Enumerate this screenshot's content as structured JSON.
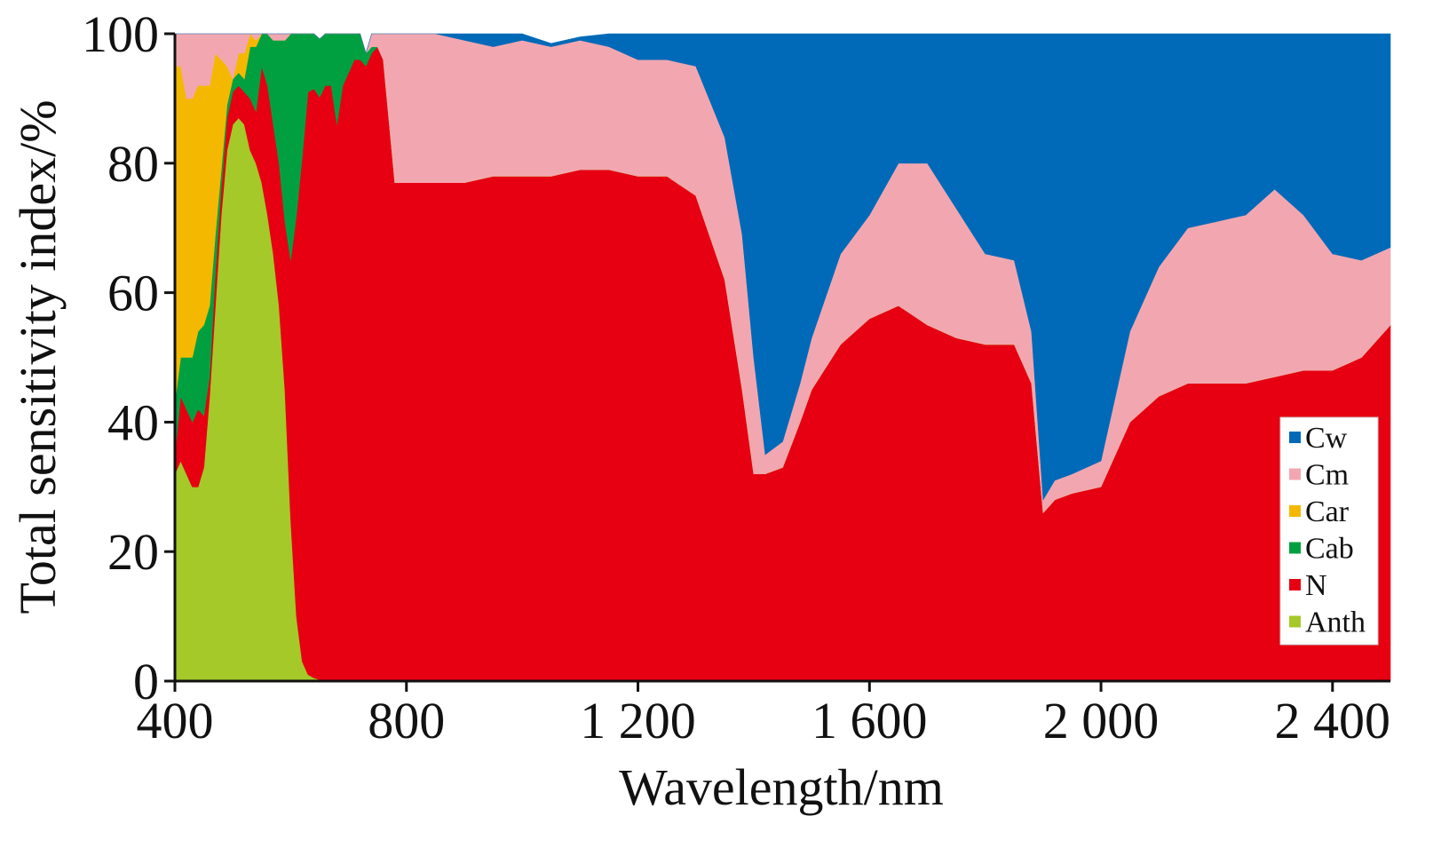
{
  "chart_data": {
    "type": "area",
    "stacked": true,
    "xlabel": "Wavelength/nm",
    "ylabel": "Total sensitivity index/%",
    "xlim": [
      400,
      2500
    ],
    "ylim": [
      0,
      100
    ],
    "x_ticks": [
      400,
      800,
      1200,
      1600,
      2000,
      2400
    ],
    "x_tick_labels": [
      "400",
      "800",
      "1 200",
      "1 600",
      "2 000",
      "2 400"
    ],
    "y_ticks": [
      0,
      20,
      40,
      60,
      80,
      100
    ],
    "y_tick_labels": [
      "0",
      "20",
      "40",
      "60",
      "80",
      "100"
    ],
    "grid": false,
    "legend_position": "bottom-right",
    "legend": [
      "Cw",
      "Cm",
      "Car",
      "Cab",
      "N",
      "Anth"
    ],
    "x": [
      400,
      410,
      420,
      430,
      440,
      450,
      460,
      470,
      480,
      490,
      500,
      510,
      520,
      530,
      540,
      550,
      560,
      570,
      580,
      590,
      600,
      610,
      620,
      630,
      640,
      650,
      660,
      670,
      680,
      690,
      700,
      710,
      720,
      730,
      740,
      750,
      760,
      780,
      800,
      850,
      900,
      950,
      1000,
      1050,
      1100,
      1150,
      1200,
      1250,
      1300,
      1350,
      1380,
      1400,
      1420,
      1450,
      1480,
      1500,
      1550,
      1600,
      1650,
      1700,
      1750,
      1800,
      1850,
      1880,
      1900,
      1920,
      1950,
      2000,
      2050,
      2100,
      2150,
      2200,
      2250,
      2300,
      2350,
      2400,
      2450,
      2500
    ],
    "series": [
      {
        "name": "Anth",
        "color": "#a4c929",
        "values": [
          32,
          34,
          32,
          30,
          30,
          33,
          44,
          58,
          72,
          82,
          86,
          87,
          86,
          82,
          80,
          77,
          72,
          66,
          58,
          45,
          25,
          10,
          3,
          1,
          0.5,
          0.2,
          0,
          0,
          0,
          0,
          0,
          0,
          0,
          0,
          0,
          0,
          0,
          0,
          0,
          0,
          0,
          0,
          0,
          0,
          0,
          0,
          0,
          0,
          0,
          0,
          0,
          0,
          0,
          0,
          0,
          0,
          0,
          0,
          0,
          0,
          0,
          0,
          0,
          0,
          0,
          0,
          0,
          0,
          0,
          0,
          0,
          0,
          0,
          0,
          0,
          0,
          0,
          0
        ]
      },
      {
        "name": "N",
        "color": "#e60012",
        "values": [
          3,
          10,
          10,
          10,
          12,
          8,
          3,
          5,
          4,
          5,
          5,
          5,
          5,
          8,
          8,
          18,
          20,
          20,
          22,
          26,
          40,
          62,
          78,
          90,
          91,
          90,
          92,
          92,
          86,
          92,
          94,
          96,
          96,
          95,
          97,
          98,
          96,
          77,
          77,
          77,
          77,
          78,
          78,
          78,
          79,
          79,
          78,
          78,
          75,
          62,
          45,
          32,
          32,
          33,
          40,
          45,
          52,
          56,
          58,
          55,
          53,
          52,
          52,
          46,
          26,
          28,
          29,
          30,
          40,
          44,
          46,
          46,
          46,
          47,
          48,
          48,
          50,
          55
        ]
      },
      {
        "name": "Cab",
        "color": "#00a040",
        "values": [
          8,
          6,
          8,
          10,
          12,
          14,
          11,
          6,
          3,
          2,
          2,
          2,
          2,
          8,
          10,
          5,
          8,
          13,
          19,
          28,
          35,
          28,
          20,
          10,
          8.5,
          9,
          8,
          8,
          14,
          8,
          6,
          4,
          4,
          2,
          1,
          0,
          0,
          0,
          0,
          0,
          0,
          0,
          0,
          0,
          0,
          0,
          0,
          0,
          0,
          0,
          0,
          0,
          0,
          0,
          0,
          0,
          0,
          0,
          0,
          0,
          0,
          0,
          0,
          0,
          0,
          0,
          0,
          0,
          0,
          0,
          0,
          0,
          0,
          0,
          0,
          0,
          0,
          0
        ]
      },
      {
        "name": "Car",
        "color": "#f5b800",
        "values": [
          52,
          45,
          40,
          40,
          38,
          37,
          34,
          28,
          17,
          6,
          0,
          3,
          4,
          2,
          1,
          0,
          0,
          0,
          0,
          0,
          0,
          0,
          0,
          0,
          0,
          0,
          0,
          0,
          0,
          0,
          0,
          0,
          0,
          0,
          0,
          0,
          0,
          0,
          0,
          0,
          0,
          0,
          0,
          0,
          0,
          0,
          0,
          0,
          0,
          0,
          0,
          0,
          0,
          0,
          0,
          0,
          0,
          0,
          0,
          0,
          0,
          0,
          0,
          0,
          0,
          0,
          0,
          0,
          0,
          0,
          0,
          0,
          0,
          0,
          0,
          0,
          0,
          0
        ]
      },
      {
        "name": "Cm",
        "color": "#f2a7b0",
        "values": [
          5,
          5,
          10,
          10,
          8,
          8,
          8,
          3,
          4,
          5,
          7,
          3,
          3,
          0,
          1,
          0,
          0,
          1,
          1,
          1,
          0,
          0,
          0,
          0,
          0,
          0,
          0,
          0,
          0,
          0,
          0,
          0,
          0,
          0,
          2,
          2,
          4,
          23,
          23,
          23,
          22,
          20,
          21,
          20,
          20,
          19,
          18,
          18,
          20,
          22,
          24,
          18,
          3,
          4,
          6,
          8,
          14,
          16,
          22,
          25,
          20,
          14,
          13,
          8,
          2,
          3,
          3,
          4,
          14,
          20,
          24,
          25,
          26,
          29,
          24,
          18,
          15,
          12
        ]
      },
      {
        "name": "Cw",
        "color": "#006ab8",
        "values": [
          0,
          0,
          0,
          0,
          0,
          0,
          0,
          0,
          0,
          0,
          0,
          0,
          0,
          0,
          0,
          0,
          0,
          0,
          0,
          0,
          0,
          0,
          0,
          0,
          0,
          0,
          0,
          0,
          0,
          0,
          0,
          0,
          0,
          0,
          0,
          0,
          0,
          0,
          0,
          0,
          1,
          2,
          1,
          0.5,
          0.5,
          2,
          4,
          4,
          5,
          16,
          31,
          50,
          65,
          63,
          54,
          47,
          34,
          28,
          20,
          20,
          27,
          34,
          35,
          46,
          72,
          69,
          68,
          66,
          46,
          36,
          30,
          29,
          28,
          24,
          28,
          34,
          35,
          33
        ]
      }
    ]
  }
}
